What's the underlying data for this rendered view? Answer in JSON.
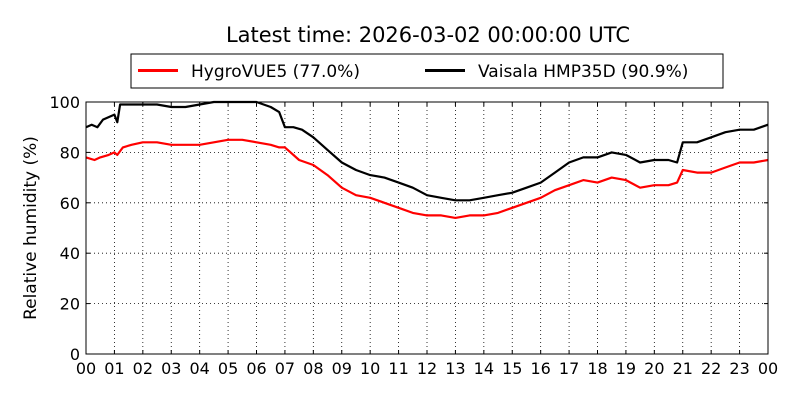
{
  "chart_data": {
    "type": "line",
    "title": "Latest time: 2026-03-02 00:00:00 UTC",
    "xlabel": "",
    "ylabel": "Relative humidity (%)",
    "xlim": [
      0,
      24
    ],
    "ylim": [
      0,
      100
    ],
    "xticks": [
      "00",
      "01",
      "02",
      "03",
      "04",
      "05",
      "06",
      "07",
      "08",
      "09",
      "10",
      "11",
      "12",
      "13",
      "14",
      "15",
      "16",
      "17",
      "18",
      "19",
      "20",
      "21",
      "22",
      "23",
      "00"
    ],
    "yticks": [
      0,
      20,
      40,
      60,
      80,
      100
    ],
    "grid": true,
    "legend_position": "top-center",
    "series": [
      {
        "name": "HygroVUE5 (77.0%)",
        "color": "#ff0000",
        "x": [
          0,
          0.3,
          0.5,
          0.8,
          1.0,
          1.1,
          1.3,
          1.6,
          2.0,
          2.5,
          3.0,
          3.5,
          4.0,
          4.5,
          5.0,
          5.5,
          6.0,
          6.5,
          6.8,
          7.0,
          7.2,
          7.5,
          8.0,
          8.5,
          9.0,
          9.5,
          10.0,
          10.5,
          11.0,
          11.5,
          12.0,
          12.5,
          13.0,
          13.5,
          14.0,
          14.5,
          15.0,
          15.5,
          16.0,
          16.5,
          17.0,
          17.5,
          18.0,
          18.5,
          19.0,
          19.5,
          20.0,
          20.5,
          20.8,
          21.0,
          21.5,
          22.0,
          22.5,
          23.0,
          23.5,
          24.0
        ],
        "y": [
          78,
          77,
          78,
          79,
          80,
          79,
          82,
          83,
          84,
          84,
          83,
          83,
          83,
          84,
          85,
          85,
          84,
          83,
          82,
          82,
          80,
          77,
          75,
          71,
          66,
          63,
          62,
          60,
          58,
          56,
          55,
          55,
          54,
          55,
          55,
          56,
          58,
          60,
          62,
          65,
          67,
          69,
          68,
          70,
          69,
          66,
          67,
          67,
          68,
          73,
          72,
          72,
          74,
          76,
          76,
          77
        ]
      },
      {
        "name": "Vaisala HMP35D (90.9%)",
        "color": "#000000",
        "x": [
          0,
          0.2,
          0.4,
          0.6,
          0.8,
          1.0,
          1.1,
          1.2,
          1.5,
          2.0,
          2.5,
          3.0,
          3.5,
          4.0,
          4.5,
          5.0,
          5.5,
          6.0,
          6.5,
          6.8,
          7.0,
          7.3,
          7.6,
          8.0,
          8.5,
          9.0,
          9.5,
          10.0,
          10.5,
          11.0,
          11.5,
          12.0,
          12.5,
          13.0,
          13.5,
          14.0,
          14.5,
          15.0,
          15.5,
          16.0,
          16.5,
          17.0,
          17.5,
          18.0,
          18.5,
          19.0,
          19.5,
          20.0,
          20.5,
          20.8,
          21.0,
          21.5,
          22.0,
          22.5,
          23.0,
          23.5,
          24.0
        ],
        "y": [
          90,
          91,
          90,
          93,
          94,
          95,
          92,
          99,
          99,
          99,
          99,
          98,
          98,
          99,
          100,
          100,
          100,
          100,
          98,
          96,
          90,
          90,
          89,
          86,
          81,
          76,
          73,
          71,
          70,
          68,
          66,
          63,
          62,
          61,
          61,
          62,
          63,
          64,
          66,
          68,
          72,
          76,
          78,
          78,
          80,
          79,
          76,
          77,
          77,
          76,
          84,
          84,
          86,
          88,
          89,
          89,
          91
        ]
      }
    ]
  }
}
